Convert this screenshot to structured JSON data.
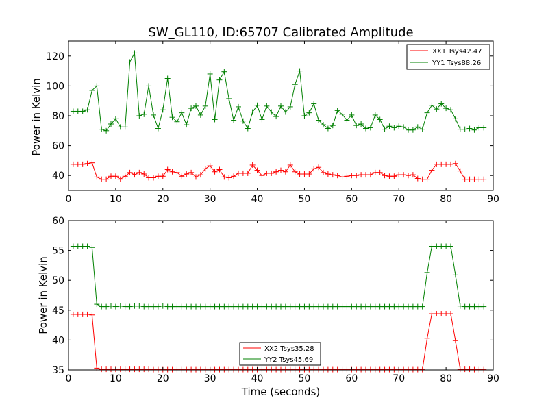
{
  "chart_data": [
    {
      "type": "line",
      "title": "SW_GL110, ID:65707 Calibrated Amplitude",
      "xlabel": "",
      "ylabel": "Power in Kelvin",
      "xlim": [
        0,
        90
      ],
      "ylim": [
        30,
        130
      ],
      "x_ticks": [
        0,
        10,
        20,
        30,
        40,
        50,
        60,
        70,
        80,
        90
      ],
      "y_ticks": [
        40,
        60,
        80,
        100,
        120
      ],
      "legend_position": "top-right",
      "x": [
        1,
        2,
        3,
        4,
        5,
        6,
        7,
        8,
        9,
        10,
        11,
        12,
        13,
        14,
        15,
        16,
        17,
        18,
        19,
        20,
        21,
        22,
        23,
        24,
        25,
        26,
        27,
        28,
        29,
        30,
        31,
        32,
        33,
        34,
        35,
        36,
        37,
        38,
        39,
        40,
        41,
        42,
        43,
        44,
        45,
        46,
        47,
        48,
        49,
        50,
        51,
        52,
        53,
        54,
        55,
        56,
        57,
        58,
        59,
        60,
        61,
        62,
        63,
        64,
        65,
        66,
        67,
        68,
        69,
        70,
        71,
        72,
        73,
        74,
        75,
        76,
        77,
        78,
        79,
        80,
        81,
        82,
        83,
        84,
        85,
        86,
        87,
        88
      ],
      "series": [
        {
          "name": "XX1 Tsys42.47",
          "color": "#ff0000",
          "values": [
            47.5,
            47.5,
            47.5,
            48,
            48.5,
            39,
            37.5,
            37.5,
            39.5,
            39.5,
            37.5,
            39.5,
            42,
            40.5,
            42,
            41,
            38.5,
            38.5,
            39.5,
            39.5,
            44,
            42.5,
            42,
            39.5,
            41,
            42,
            39,
            40.5,
            44.5,
            46.5,
            42.5,
            44,
            39,
            38.5,
            39.5,
            41.5,
            41.5,
            41.5,
            47,
            43.5,
            40,
            41.5,
            41.5,
            42.5,
            43.5,
            42.5,
            47,
            42.5,
            41,
            41,
            41,
            44.5,
            45.5,
            42,
            41,
            40.5,
            40,
            39,
            39.5,
            40,
            40,
            40.5,
            40.5,
            40.5,
            42,
            42,
            40,
            39.5,
            39.5,
            40.5,
            40.5,
            40,
            40.5,
            38,
            37.5,
            37.5,
            43.5,
            47.5,
            47.5,
            47.5,
            47.5,
            48,
            43,
            37.5,
            37.5,
            37.5,
            37.5,
            37.5
          ]
        },
        {
          "name": "YY1 Tsys88.26",
          "color": "#008000",
          "values": [
            83,
            83,
            83,
            84,
            97,
            100,
            71,
            70,
            74.5,
            78,
            72.5,
            72.5,
            116,
            122,
            80,
            81,
            100,
            80.5,
            71.5,
            84,
            105,
            79,
            76,
            82,
            74,
            85,
            86.5,
            80.5,
            86.5,
            108,
            77.5,
            104,
            109.5,
            91.5,
            77,
            86,
            76.5,
            71.5,
            82.5,
            87,
            77.5,
            86.5,
            82.5,
            79.5,
            86.5,
            82.5,
            86,
            101,
            110,
            80,
            82,
            88,
            77,
            74,
            71.5,
            73.5,
            83.5,
            81,
            77,
            80.5,
            73.5,
            74.5,
            71.5,
            72,
            80.5,
            77.5,
            71,
            73,
            72,
            73,
            72.5,
            70.5,
            70.5,
            72.5,
            71,
            82,
            87,
            84.5,
            88,
            85,
            84,
            78,
            71,
            71,
            71.5,
            70.5,
            72,
            72
          ]
        }
      ]
    },
    {
      "type": "line",
      "title": "",
      "xlabel": "Time (seconds)",
      "ylabel": "Power in Kelvin",
      "xlim": [
        0,
        90
      ],
      "ylim": [
        35,
        60
      ],
      "x_ticks": [
        0,
        10,
        20,
        30,
        40,
        50,
        60,
        70,
        80,
        90
      ],
      "y_ticks": [
        35,
        40,
        45,
        50,
        55,
        60
      ],
      "legend_position": "lower-center",
      "x": [
        1,
        2,
        3,
        4,
        5,
        6,
        7,
        8,
        9,
        10,
        11,
        12,
        13,
        14,
        15,
        16,
        17,
        18,
        19,
        20,
        21,
        22,
        23,
        24,
        25,
        26,
        27,
        28,
        29,
        30,
        31,
        32,
        33,
        34,
        35,
        36,
        37,
        38,
        39,
        40,
        41,
        42,
        43,
        44,
        45,
        46,
        47,
        48,
        49,
        50,
        51,
        52,
        53,
        54,
        55,
        56,
        57,
        58,
        59,
        60,
        61,
        62,
        63,
        64,
        65,
        66,
        67,
        68,
        69,
        70,
        71,
        72,
        73,
        74,
        75,
        76,
        77,
        78,
        79,
        80,
        81,
        82,
        83,
        84,
        85,
        86,
        87,
        88
      ],
      "series": [
        {
          "name": "XX2 Tsys35.28",
          "color": "#ff0000",
          "values": [
            44.3,
            44.3,
            44.3,
            44.3,
            44.2,
            35.3,
            35.1,
            35.1,
            35.1,
            35.1,
            35.1,
            35.1,
            35.1,
            35.1,
            35.1,
            35.1,
            35.1,
            35.05,
            35.05,
            35.05,
            35.05,
            35.05,
            35.05,
            35.05,
            35.05,
            35.05,
            35.05,
            35.05,
            35.05,
            35.05,
            35.05,
            35.05,
            35.05,
            35.05,
            35.05,
            35.05,
            35.05,
            35.05,
            35.05,
            35.05,
            35.05,
            35.05,
            35.05,
            35.05,
            35.05,
            35.05,
            35.05,
            35.05,
            35.05,
            35.05,
            35.05,
            35.05,
            35.05,
            35.05,
            35.05,
            35.05,
            35.05,
            35.05,
            35.05,
            35.05,
            35.05,
            35.05,
            35.05,
            35.05,
            35.05,
            35.05,
            35.05,
            35.05,
            35.05,
            35.05,
            35.05,
            35.05,
            35.05,
            35.05,
            35.05,
            40.3,
            44.4,
            44.4,
            44.4,
            44.4,
            44.4,
            39.9,
            35.1,
            35.1,
            35.1,
            35.05,
            35.05,
            35.05
          ]
        },
        {
          "name": "YY2 Tsys45.69",
          "color": "#008000",
          "values": [
            55.7,
            55.7,
            55.7,
            55.7,
            55.5,
            46,
            45.6,
            45.6,
            45.7,
            45.6,
            45.7,
            45.6,
            45.6,
            45.7,
            45.7,
            45.6,
            45.6,
            45.6,
            45.6,
            45.7,
            45.6,
            45.6,
            45.6,
            45.6,
            45.6,
            45.6,
            45.6,
            45.6,
            45.6,
            45.6,
            45.6,
            45.6,
            45.6,
            45.6,
            45.6,
            45.6,
            45.6,
            45.6,
            45.6,
            45.6,
            45.6,
            45.6,
            45.6,
            45.6,
            45.6,
            45.6,
            45.6,
            45.6,
            45.6,
            45.6,
            45.6,
            45.6,
            45.6,
            45.6,
            45.6,
            45.6,
            45.6,
            45.6,
            45.6,
            45.6,
            45.6,
            45.6,
            45.6,
            45.6,
            45.6,
            45.6,
            45.6,
            45.6,
            45.6,
            45.6,
            45.6,
            45.6,
            45.6,
            45.6,
            45.6,
            51.3,
            55.7,
            55.7,
            55.7,
            55.7,
            55.7,
            50.9,
            45.7,
            45.6,
            45.6,
            45.6,
            45.6,
            45.6
          ]
        }
      ]
    }
  ]
}
